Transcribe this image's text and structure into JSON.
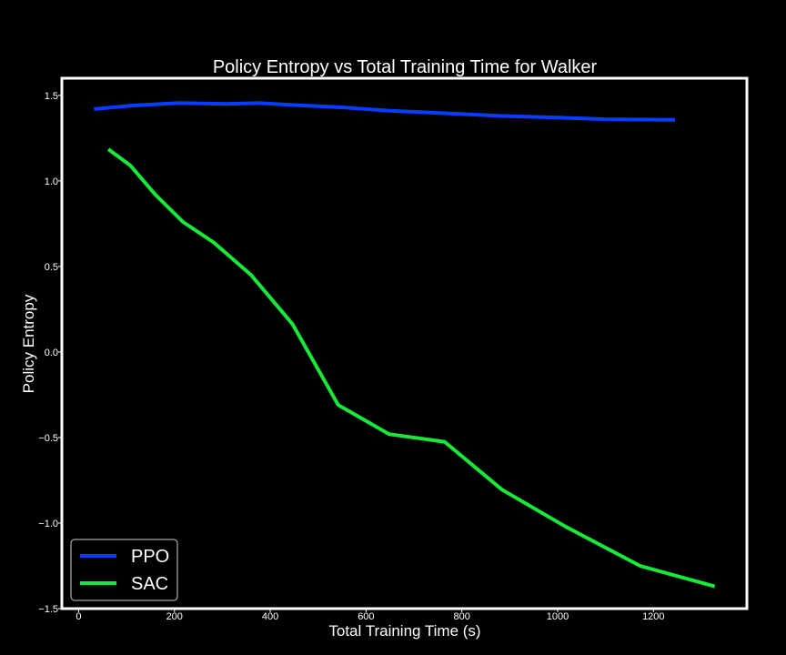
{
  "chart_data": {
    "type": "line",
    "title": "Policy Entropy vs Total Training Time for Walker",
    "xlabel": "Total Training Time (s)",
    "ylabel": "Policy Entropy",
    "xlim": [
      -35,
      1395
    ],
    "ylim": [
      -1.5,
      1.6
    ],
    "xticks": [
      0,
      200,
      400,
      600,
      800,
      1000,
      1200
    ],
    "xtick_labels": [
      "0",
      "200",
      "400",
      "600",
      "800",
      "1000",
      "1200"
    ],
    "yticks": [
      1.5,
      1.0,
      0.5,
      0.0,
      -0.5,
      -1.0,
      -1.5
    ],
    "ytick_labels": [
      "1.5",
      "1.0",
      "0.5",
      "0.0",
      "−0.5",
      "−1.0",
      "−1.5"
    ],
    "grid": false,
    "legend": "lower-left",
    "background": "#000000",
    "foreground": "#ffffff",
    "series": [
      {
        "name": "PPO",
        "color": "#0a3cff",
        "x": [
          32,
          110,
          210,
          310,
          375,
          440,
          550,
          650,
          770,
          880,
          1000,
          1100,
          1245
        ],
        "y": [
          1.42,
          1.44,
          1.455,
          1.45,
          1.455,
          1.445,
          1.43,
          1.41,
          1.395,
          1.38,
          1.37,
          1.36,
          1.357
        ]
      },
      {
        "name": "SAC",
        "color": "#17e83a",
        "x": [
          62,
          108,
          160,
          218,
          282,
          360,
          446,
          542,
          648,
          764,
          884,
          1016,
          1172,
          1328
        ],
        "y": [
          1.185,
          1.09,
          0.92,
          0.76,
          0.64,
          0.45,
          0.165,
          -0.31,
          -0.48,
          -0.525,
          -0.805,
          -1.02,
          -1.25,
          -1.37
        ]
      }
    ]
  }
}
